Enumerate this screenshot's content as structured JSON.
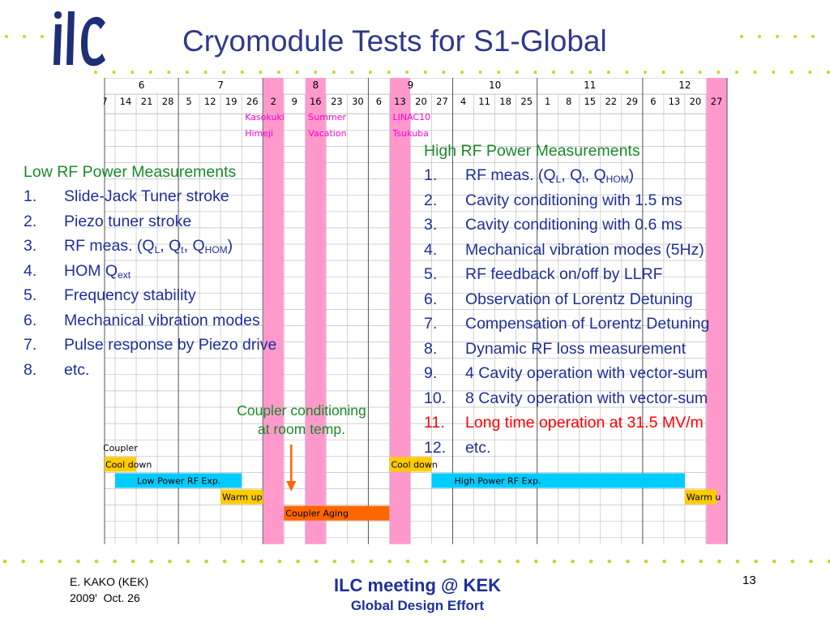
{
  "slide": {
    "title": "Cryomodule Tests for S1-Global",
    "footer_author": "E. KAKO (KEK)",
    "footer_date": "2009'  Oct. 26",
    "footer_meeting": "ILC meeting @ KEK",
    "footer_group": "Global Design Effort",
    "page_number": "13",
    "colors": {
      "title": "#2e3a8c",
      "list_text": "#1f2f9c",
      "heading": "#1a8a2a",
      "highlight": "#ff0000",
      "dots": "#c8d628",
      "vacation": "#ff99cc",
      "bar_cyan": "#00ccff",
      "bar_yellow": "#ffcc00",
      "bar_orange": "#ff6600",
      "logo": "#1e2f78"
    }
  },
  "schedule": {
    "months": [
      "6",
      "7",
      "8",
      "9",
      "10",
      "11",
      "12"
    ],
    "weeks": [
      "7",
      "14",
      "21",
      "28",
      "5",
      "12",
      "19",
      "26",
      "2",
      "9",
      "16",
      "23",
      "30",
      "6",
      "13",
      "20",
      "27",
      "4",
      "11",
      "18",
      "25",
      "1",
      "8",
      "15",
      "22",
      "29",
      "6",
      "13",
      "20",
      "27"
    ],
    "events": [
      "Kasokuki\nHimeji",
      "Summer\nVacation",
      "LINAC10\nTsukuba"
    ],
    "tasks": {
      "coupler": "Coupler",
      "cool_down_1": "Cool down",
      "low_power": "Low Power RF Exp.",
      "warm_up_1": "Warm up",
      "coupler_aging": "Coupler Aging",
      "cool_down_2": "Cool down",
      "high_power": "High Power RF Exp.",
      "warm_up_2": "Warm u"
    }
  },
  "low_rf": {
    "heading": "Low RF Power Measurements",
    "items": [
      {
        "num": "1.",
        "text": "Slide-Jack Tuner stroke"
      },
      {
        "num": "2.",
        "text": "Piezo tuner stroke"
      },
      {
        "num": "3.",
        "text": "RF meas. (Q",
        "sub1": "L",
        "mid1": ", Q",
        "sub2": "t",
        "mid2": ", Q",
        "sub3": "HOM",
        "end": ")"
      },
      {
        "num": "4.",
        "text": "HOM Q",
        "sub1": "ext"
      },
      {
        "num": "5.",
        "text": "Frequency stability"
      },
      {
        "num": "6.",
        "text": "Mechanical vibration modes"
      },
      {
        "num": "7.",
        "text": "Pulse response by Piezo drive"
      },
      {
        "num": "8.",
        "text": "etc."
      }
    ]
  },
  "high_rf": {
    "heading": "High RF Power Measurements",
    "items": [
      {
        "num": "1.",
        "text": "RF meas. (Q",
        "sub1": "L",
        "mid1": ", Q",
        "sub2": "t",
        "mid2": ", Q",
        "sub3": "HOM",
        "end": ")"
      },
      {
        "num": "2.",
        "text": "Cavity conditioning with 1.5 ms"
      },
      {
        "num": "3.",
        "text": "Cavity conditioning with 0.6 ms"
      },
      {
        "num": "4.",
        "text": "Mechanical vibration modes (5Hz)"
      },
      {
        "num": "5.",
        "text": "RF feedback on/off by LLRF"
      },
      {
        "num": "6.",
        "text": "Observation of Lorentz Detuning"
      },
      {
        "num": "7.",
        "text": "Compensation of Lorentz Detuning"
      },
      {
        "num": "8.",
        "text": "Dynamic RF loss measurement"
      },
      {
        "num": "9.",
        "text": "4 Cavity operation with vector-sum"
      },
      {
        "num": "10.",
        "text": "8 Cavity operation with vector-sum"
      },
      {
        "num": "11.",
        "text": "Long time operation at 31.5 MV/m"
      },
      {
        "num": "12.",
        "text": "etc."
      }
    ]
  },
  "coupler_note": {
    "line1": "Coupler conditioning",
    "line2": "at room temp."
  }
}
